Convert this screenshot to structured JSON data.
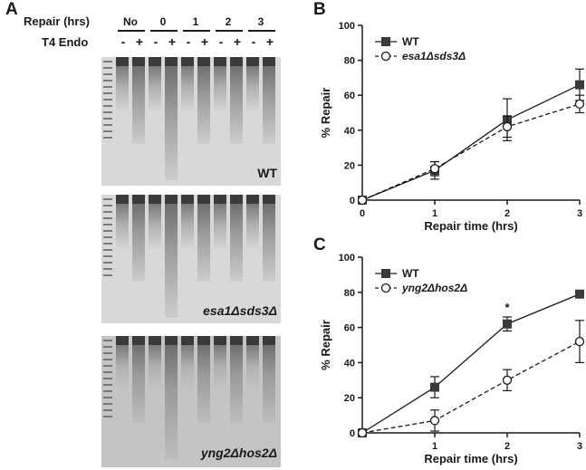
{
  "panel_a": {
    "letter": "A",
    "repair_header": "Repair (hrs)",
    "endo_header": "T4 Endo",
    "timepoints": [
      "No",
      "0",
      "1",
      "2",
      "3"
    ],
    "signs": [
      "-",
      "+",
      "-",
      "+",
      "-",
      "+",
      "-",
      "+",
      "-",
      "+"
    ],
    "gels": [
      {
        "label": "WT"
      },
      {
        "label": "esa1Δsds3Δ"
      },
      {
        "label": "yng2Δhos2Δ"
      }
    ]
  },
  "chart_data": [
    {
      "panel": "B",
      "type": "line",
      "xlabel": "Repair time (hrs)",
      "ylabel": "% Repair",
      "xlim": [
        0,
        3
      ],
      "ylim": [
        0,
        100
      ],
      "xticks": [
        0,
        1,
        2,
        3
      ],
      "yticks": [
        0,
        20,
        40,
        60,
        80,
        100
      ],
      "legend_position": "top-left",
      "series": [
        {
          "name": "WT",
          "marker": "filled-square",
          "line": "solid",
          "x": [
            0,
            1,
            2,
            3
          ],
          "y": [
            0,
            17,
            46,
            66
          ],
          "err": [
            0,
            5,
            12,
            9
          ]
        },
        {
          "name": "esa1Δsds3Δ",
          "marker": "open-circle",
          "line": "dashed",
          "x": [
            0,
            1,
            2,
            3
          ],
          "y": [
            0,
            18,
            42,
            55
          ],
          "err": [
            0,
            4,
            6,
            5
          ]
        }
      ]
    },
    {
      "panel": "C",
      "type": "line",
      "xlabel": "Repair time (hrs)",
      "ylabel": "% Repair",
      "xlim": [
        0,
        3
      ],
      "ylim": [
        0,
        100
      ],
      "xticks": [
        1,
        2,
        3
      ],
      "yticks": [
        0,
        20,
        40,
        60,
        80,
        100
      ],
      "legend_position": "top-left",
      "annotations": [
        {
          "text": "*",
          "x": 2
        }
      ],
      "series": [
        {
          "name": "WT",
          "marker": "filled-square",
          "line": "solid",
          "x": [
            0,
            1,
            2,
            3
          ],
          "y": [
            0,
            26,
            62,
            79
          ],
          "err": [
            0,
            6,
            4,
            2
          ]
        },
        {
          "name": "yng2Δhos2Δ",
          "marker": "open-circle",
          "line": "dashed",
          "x": [
            0,
            1,
            2,
            3
          ],
          "y": [
            0,
            7,
            30,
            52
          ],
          "err": [
            0,
            6,
            6,
            12
          ]
        }
      ]
    }
  ]
}
